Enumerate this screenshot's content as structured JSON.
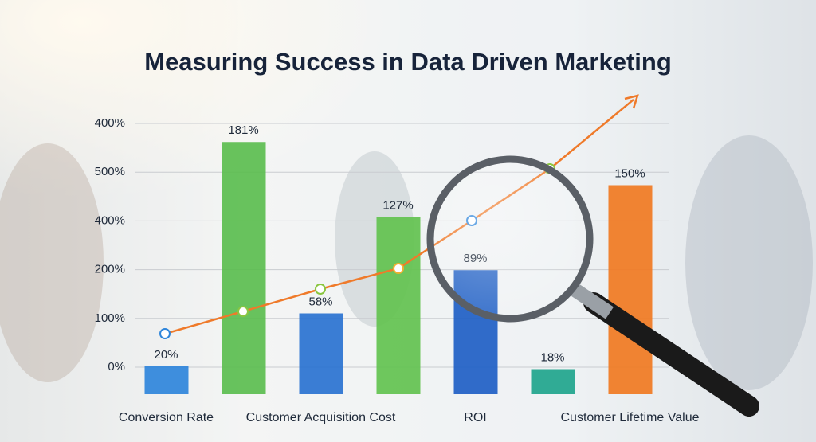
{
  "chart_data": {
    "type": "bar",
    "title": "Measuring Success in Data Driven Marketing",
    "y_axis_labels": [
      "0%",
      "100%",
      "200%",
      "400%",
      "500%",
      "400%"
    ],
    "categories": [
      "Conversion Rate",
      null,
      "Customer Acquisition Cost",
      null,
      "ROI",
      null,
      "Customer Lifetime Value"
    ],
    "values": [
      20,
      181,
      58,
      127,
      89,
      18,
      150
    ],
    "value_labels": [
      "20%",
      "181%",
      "58%",
      "127%",
      "89%",
      "18%",
      "150%"
    ],
    "colors": [
      "#2f86db",
      "#5bbd4f",
      "#2a72d0",
      "#63c24f",
      "#2060c4",
      "#1fa58c",
      "#f07a22"
    ],
    "grid": true
  }
}
